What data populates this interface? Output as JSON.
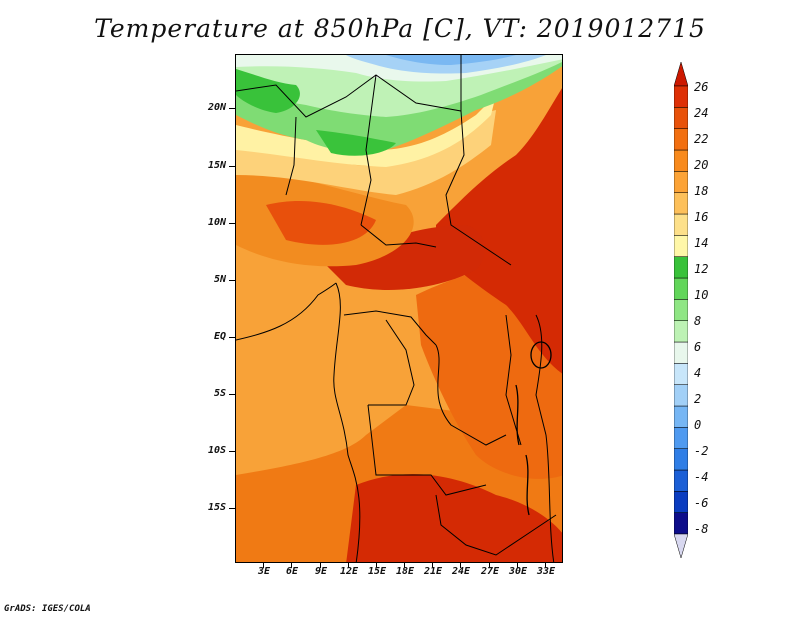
{
  "title": "Temperature at 850hPa [C], VT: 2019012715",
  "credit": "GrADS: IGES/COLA",
  "map": {
    "lat_labels": [
      "20N",
      "15N",
      "10N",
      "5N",
      "EQ",
      "5S",
      "10S",
      "15S"
    ],
    "lon_labels": [
      "3E",
      "6E",
      "9E",
      "12E",
      "15E",
      "18E",
      "21E",
      "24E",
      "27E",
      "30E",
      "33E"
    ],
    "lat_range": [
      -20,
      24
    ],
    "lon_range": [
      0,
      35
    ],
    "lat_values": [
      20,
      15,
      10,
      5,
      0,
      -5,
      -10,
      -15
    ],
    "lon_values": [
      3,
      6,
      9,
      12,
      15,
      18,
      21,
      24,
      27,
      30,
      33
    ]
  },
  "colorbar": {
    "labels": [
      "26",
      "24",
      "22",
      "20",
      "18",
      "16",
      "14",
      "12",
      "10",
      "8",
      "6",
      "4",
      "2",
      "0",
      "-2",
      "-4",
      "-6",
      "-8"
    ],
    "colors": [
      "#d8d8f0",
      "#0d0d8a",
      "#0a3cc0",
      "#1b5fd6",
      "#2f7ee6",
      "#4f9af0",
      "#76b6f4",
      "#a2d0f7",
      "#c8e6fa",
      "#e8f7ec",
      "#bdf2b4",
      "#8fe684",
      "#62d65a",
      "#39c23a",
      "#fff7a8",
      "#fde08a",
      "#fdc05a",
      "#fca336",
      "#f88a1c",
      "#f26f10",
      "#e8520a",
      "#de3006",
      "#cc1800"
    ]
  }
}
